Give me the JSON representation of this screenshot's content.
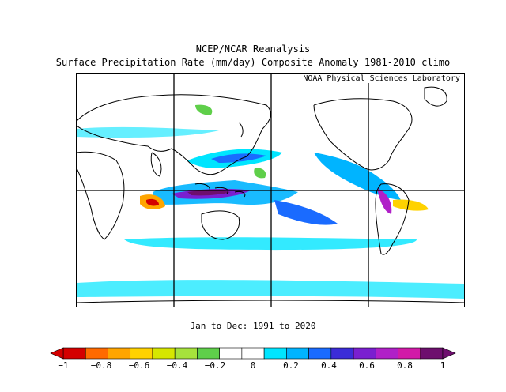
{
  "title_line1": "NCEP/NCAR Reanalysis",
  "title_line2": "Surface Precipitation Rate (mm/day) Composite Anomaly 1981-2010 climo",
  "credit": "NOAA Physical Sciences Laboratory",
  "period": "Jan to Dec: 1991 to 2020",
  "colorbar": {
    "colors": [
      "#d40000",
      "#ff6a00",
      "#ffa500",
      "#ffd200",
      "#d6e600",
      "#a6e23c",
      "#5fcf4a",
      "#ffffff",
      "#ffffff",
      "#00e5ff",
      "#00b4ff",
      "#1a6bff",
      "#3b2cd8",
      "#7a1fd0",
      "#b020c8",
      "#d21aa8",
      "#6e0f6e"
    ],
    "tick_labels": [
      "-1",
      "-0.8",
      "-0.6",
      "-0.4",
      "-0.2",
      "0",
      "0.2",
      "0.4",
      "0.6",
      "0.8",
      "1"
    ],
    "range": [
      -1,
      1
    ]
  },
  "map": {
    "projection": "cylindrical, 0-360E",
    "grid": "60-degree longitude lines and equator",
    "land_color": "#ffffff",
    "outline_color": "#000000"
  }
}
